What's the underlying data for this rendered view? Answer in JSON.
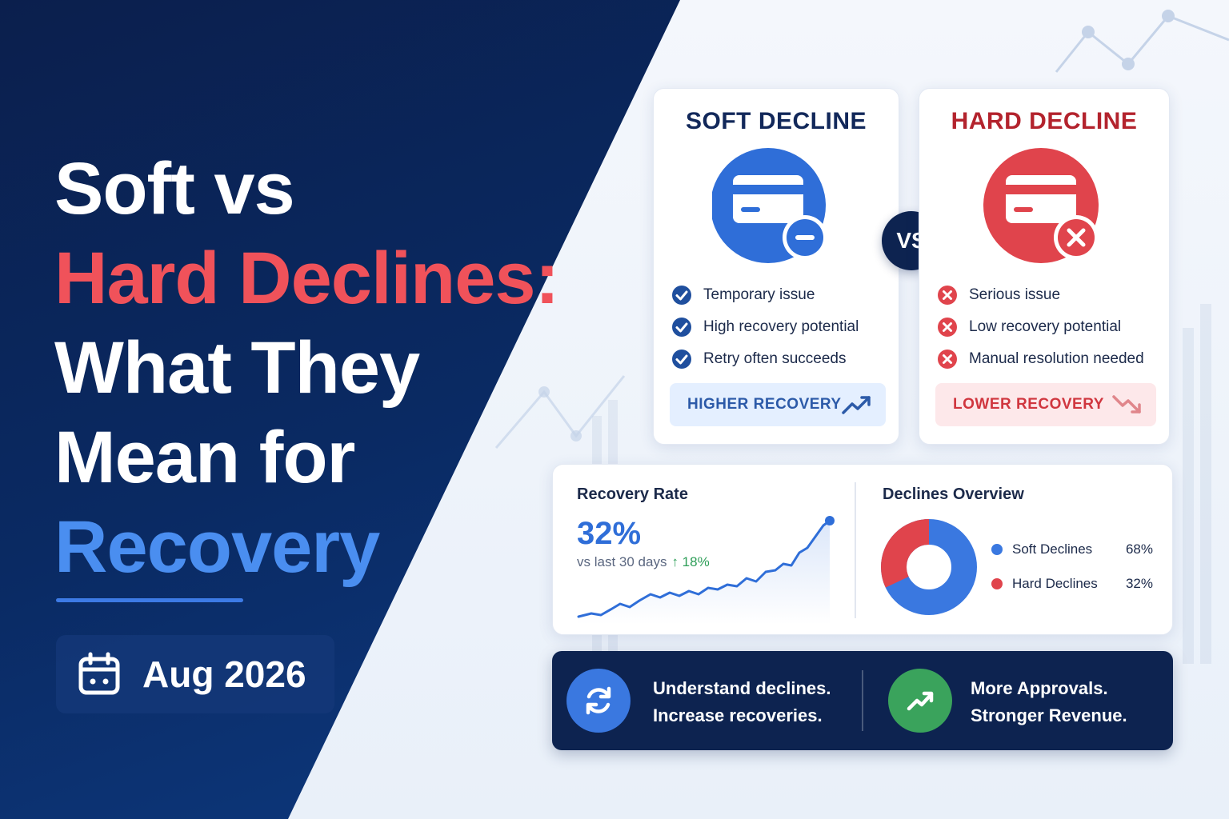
{
  "headline": {
    "line1": "Soft vs",
    "line2": "Hard Declines:",
    "line3": "What They",
    "line4": "Mean for",
    "line5": "Recovery"
  },
  "date": {
    "label": "Aug 2026",
    "icon": "calendar-icon"
  },
  "soft_card": {
    "title": "SOFT DECLINE",
    "icon": "credit-card-minus-icon",
    "features": [
      "Temporary issue",
      "High recovery potential",
      "Retry often succeeds"
    ],
    "badge": "HIGHER RECOVERY",
    "accent": "#2f6ed8"
  },
  "hard_card": {
    "title": "HARD DECLINE",
    "icon": "credit-card-x-icon",
    "features": [
      "Serious issue",
      "Low recovery potential",
      "Manual resolution needed"
    ],
    "badge": "LOWER RECOVERY",
    "accent": "#e0444c"
  },
  "vs_label": "VS",
  "recovery_rate": {
    "title": "Recovery Rate",
    "value": "32%",
    "sub": "vs last 30 days",
    "change": "↑ 18%"
  },
  "declines_overview": {
    "title": "Declines Overview",
    "soft_label": "Soft Declines",
    "soft_pct": "68%",
    "hard_label": "Hard Declines",
    "hard_pct": "32%",
    "soft_color": "#3a78e0",
    "hard_color": "#e0444c"
  },
  "banner": {
    "left_line1": "Understand declines.",
    "left_line2": "Increase recoveries.",
    "right_line1": "More Approvals.",
    "right_line2": "Stronger Revenue.",
    "left_icon": "refresh-icon",
    "right_icon": "trend-up-icon"
  }
}
